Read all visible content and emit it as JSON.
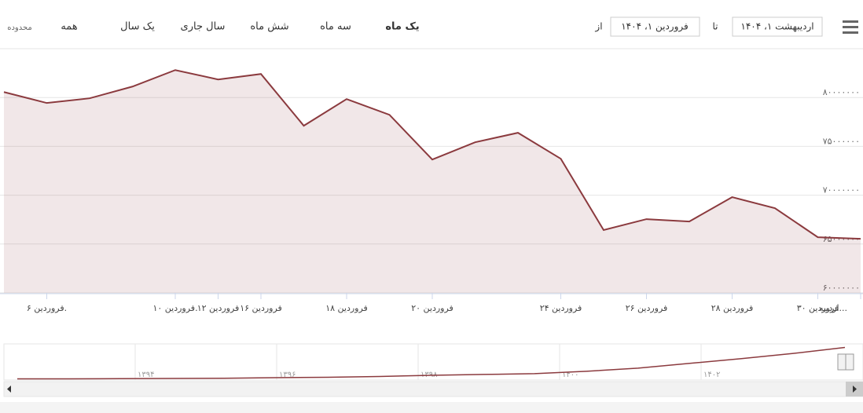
{
  "range_selector": {
    "label": "محدوده",
    "buttons": [
      "همه",
      "یک سال",
      "سال جاری",
      "شش ماه",
      "سه ماه",
      "یک ماه"
    ],
    "selected": 5,
    "from_label": "از",
    "from": "فروردین ۱، ۱۴۰۴",
    "to_label": "تا",
    "to": "اردیبهشت ۱، ۱۴۰۴"
  },
  "chart_data": {
    "type": "area",
    "categories": [
      null,
      "فروردین ۶.",
      null,
      null,
      "فروردین ۱۰.",
      "۱۲ فروردین",
      "۱۶ فروردین",
      null,
      "۱۸ فروردین",
      null,
      "۲۰ فروردین",
      null,
      null,
      "۲۴ فروردین",
      null,
      "۲۶ فروردین",
      null,
      "۲۸ فروردین",
      null,
      "۳۰ فروردین",
      "اردیبه..."
    ],
    "series": [
      {
        "color": "#8b3a3e",
        "values": [
          80560000,
          79440000,
          79920000,
          81120000,
          82810000,
          81850000,
          82410000,
          77110000,
          79840000,
          78230000,
          73650000,
          75420000,
          76390000,
          73730000,
          66430000,
          67550000,
          67310000,
          69800000,
          68670000,
          65700000,
          65540000
        ]
      }
    ],
    "ylim": [
      60000000,
      85000000
    ],
    "yticks": [
      {
        "value": 60000000,
        "label": "۶۰۰۰۰۰۰۰"
      },
      {
        "value": 65000000,
        "label": "۶۵۰۰۰۰۰۰"
      },
      {
        "value": 70000000,
        "label": "۷۰۰۰۰۰۰۰"
      },
      {
        "value": 75000000,
        "label": "۷۵۰۰۰۰۰۰"
      },
      {
        "value": 80000000,
        "label": "۸۰۰۰۰۰۰۰"
      }
    ],
    "grid": true,
    "navigator": {
      "labels": [
        "۱۳۹۴",
        "۱۳۹۶",
        "۱۳۹۸",
        "۱۴۰۰",
        "۱۴۰۲"
      ],
      "ylim": [
        0,
        85000000
      ],
      "values": [
        1000000,
        1000000,
        1500000,
        2000000,
        2500000,
        4000000,
        5000000,
        7000000,
        10000000,
        12000000,
        14000000,
        20000000,
        28000000,
        40000000,
        52000000,
        65000000,
        80000000
      ]
    }
  }
}
